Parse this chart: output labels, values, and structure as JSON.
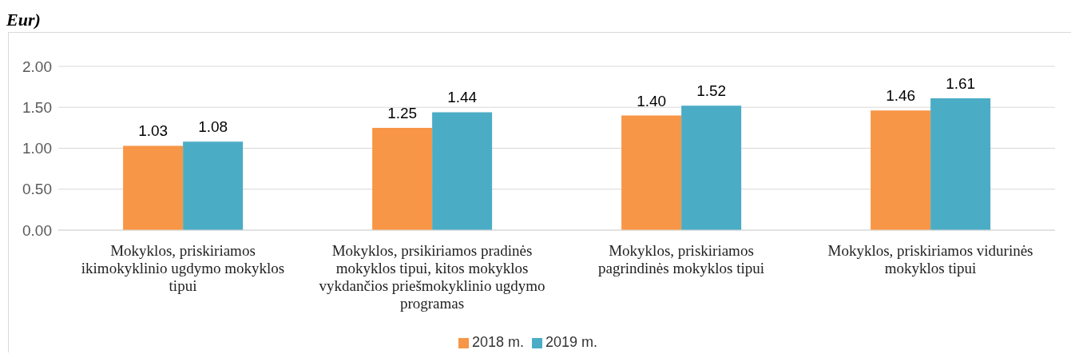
{
  "chart_data": {
    "type": "bar",
    "title": "Eur)",
    "categories": [
      "Mokyklos, priskiriamos ikimokyklinio ugdymo mokyklos tipui",
      "Mokyklos, prsikiriamos pradinės mokyklos tipui, kitos mokyklos vykdančios priešmokyklinio ugdymo programas",
      "Mokyklos, priskiriamos pagrindinės mokyklos tipui",
      "Mokyklos, priskiriamos vidurinės mokyklos tipui"
    ],
    "series": [
      {
        "name": "2018 m.",
        "color": "#f79646",
        "values": [
          1.03,
          1.25,
          1.4,
          1.46
        ],
        "value_labels": [
          "1.03",
          "1.25",
          "1.40",
          "1.46"
        ]
      },
      {
        "name": "2019 m.",
        "color": "#4bacc6",
        "values": [
          1.08,
          1.44,
          1.52,
          1.61
        ],
        "value_labels": [
          "1.08",
          "1.44",
          "1.52",
          "1.61"
        ]
      }
    ],
    "ylim": [
      0,
      2
    ],
    "yticks": [
      "0.00",
      "0.50",
      "1.00",
      "1.50",
      "2.00"
    ],
    "grid": "y",
    "legend": "bottom"
  }
}
